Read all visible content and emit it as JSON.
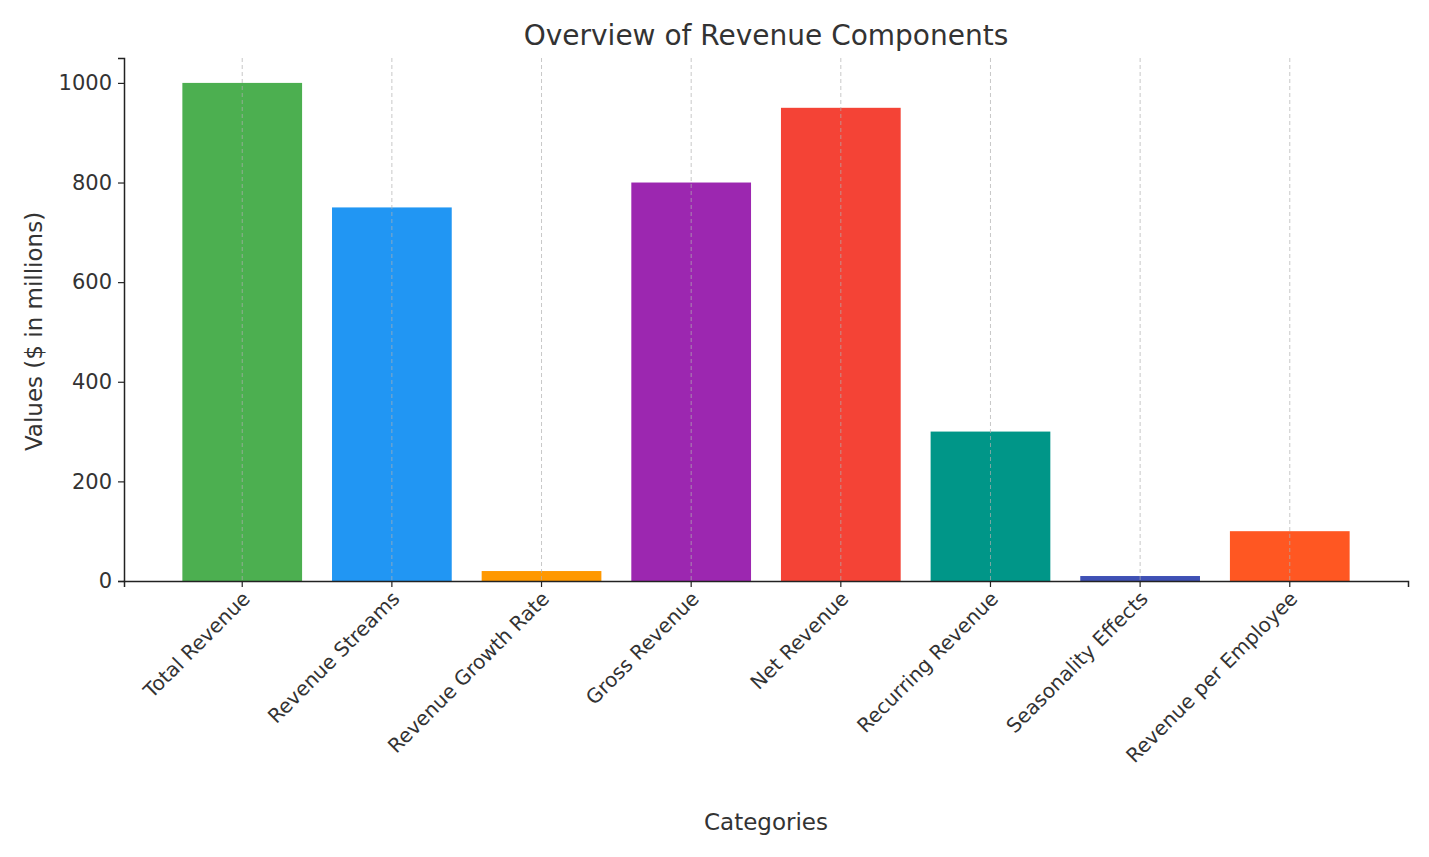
{
  "chart_data": {
    "type": "bar",
    "title": "Overview of Revenue Components",
    "x_label": "Categories",
    "y_label": "Values ($ in millions)",
    "categories": [
      "Total Revenue",
      "Revenue Streams",
      "Revenue Growth Rate",
      "Gross Revenue",
      "Net Revenue",
      "Recurring Revenue",
      "Seasonality Effects",
      "Revenue per Employee"
    ],
    "values": [
      1000,
      750,
      20,
      800,
      950,
      300,
      10,
      100
    ],
    "colors": [
      "#4caf50",
      "#2196f3",
      "#ff9800",
      "#9c27b0",
      "#f44336",
      "#009688",
      "#3f51b5",
      "#ff5722"
    ],
    "ylim": [
      0,
      1050
    ],
    "yticks": [
      0,
      200,
      400,
      600,
      800,
      1000
    ],
    "grid": "x"
  }
}
